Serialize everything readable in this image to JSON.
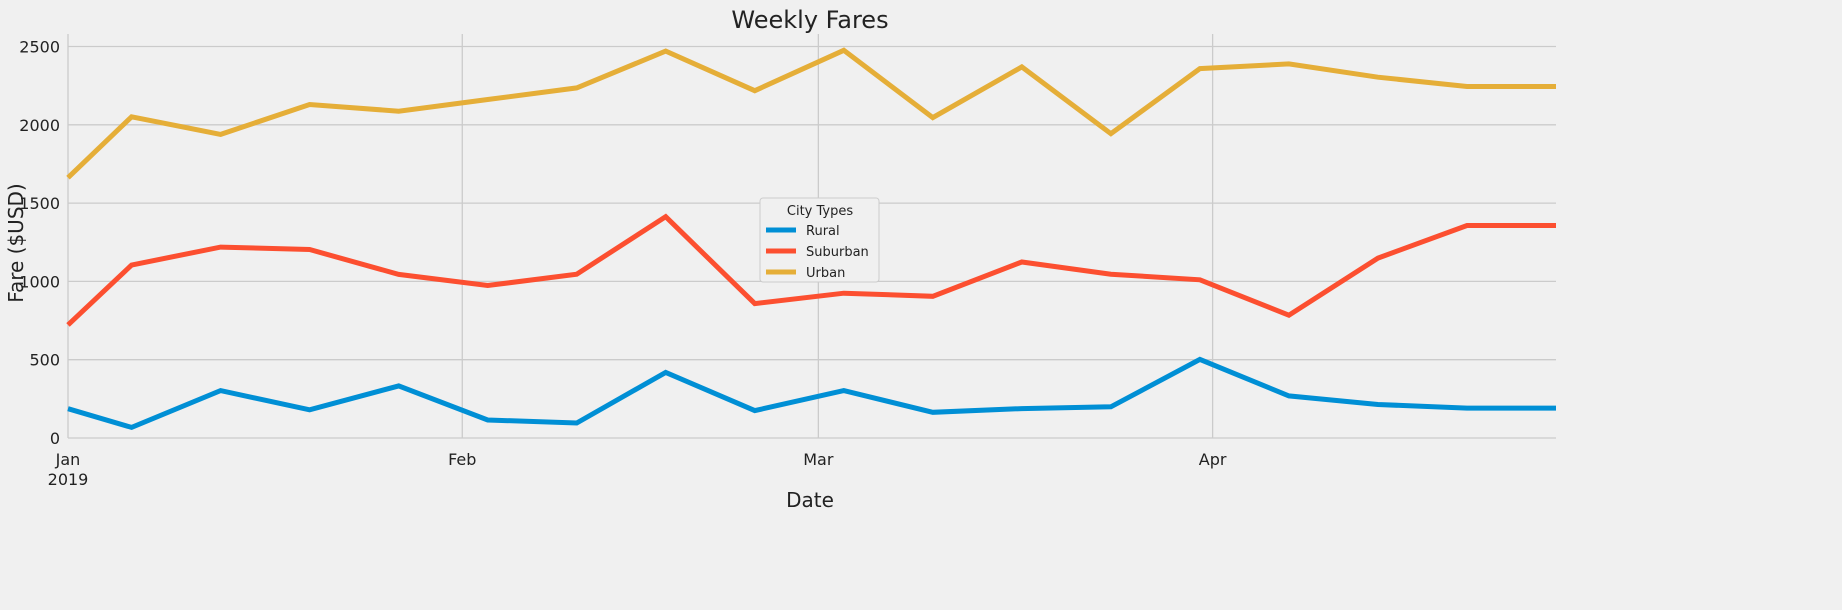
{
  "chart_data": {
    "type": "line",
    "title": "Weekly Fares",
    "xlabel": "Date",
    "ylabel": "Fare ($USD)",
    "ylim": [
      0,
      2580
    ],
    "xlim": [
      "2019-01-01",
      "2019-04-28"
    ],
    "yticks": [
      0,
      500,
      1000,
      1500,
      2000,
      2500
    ],
    "xticks": [
      {
        "date": "2019-01-01",
        "label": "Jan",
        "sublabel": "2019"
      },
      {
        "date": "2019-02-01",
        "label": "Feb",
        "sublabel": ""
      },
      {
        "date": "2019-03-01",
        "label": "Mar",
        "sublabel": ""
      },
      {
        "date": "2019-04-01",
        "label": "Apr",
        "sublabel": ""
      }
    ],
    "grid": true,
    "legend": {
      "title": "City Types",
      "placement": "center"
    },
    "x": [
      "2019-01-01",
      "2019-01-06",
      "2019-01-13",
      "2019-01-20",
      "2019-01-27",
      "2019-02-03",
      "2019-02-10",
      "2019-02-17",
      "2019-02-24",
      "2019-03-03",
      "2019-03-10",
      "2019-03-17",
      "2019-03-24",
      "2019-03-31",
      "2019-04-07",
      "2019-04-14",
      "2019-04-21",
      "2019-04-28"
    ],
    "series": [
      {
        "name": "Rural",
        "color": "#008fd5",
        "values": [
          187,
          68,
          303,
          180,
          333,
          115,
          96,
          419,
          175,
          303,
          164,
          188,
          199,
          502,
          269,
          214,
          191,
          191
        ]
      },
      {
        "name": "Suburban",
        "color": "#fc4f30",
        "values": [
          722,
          1105,
          1219,
          1204,
          1045,
          974,
          1046,
          1413,
          858,
          925,
          905,
          1124,
          1046,
          1010,
          784,
          1149,
          1357,
          1357
        ]
      },
      {
        "name": "Urban",
        "color": "#e5ae38",
        "values": [
          1662,
          2051,
          1939,
          2130,
          2087,
          2162,
          2236,
          2471,
          2218,
          2476,
          2046,
          2370,
          1943,
          2359,
          2389,
          2304,
          2245,
          2245
        ]
      }
    ]
  }
}
